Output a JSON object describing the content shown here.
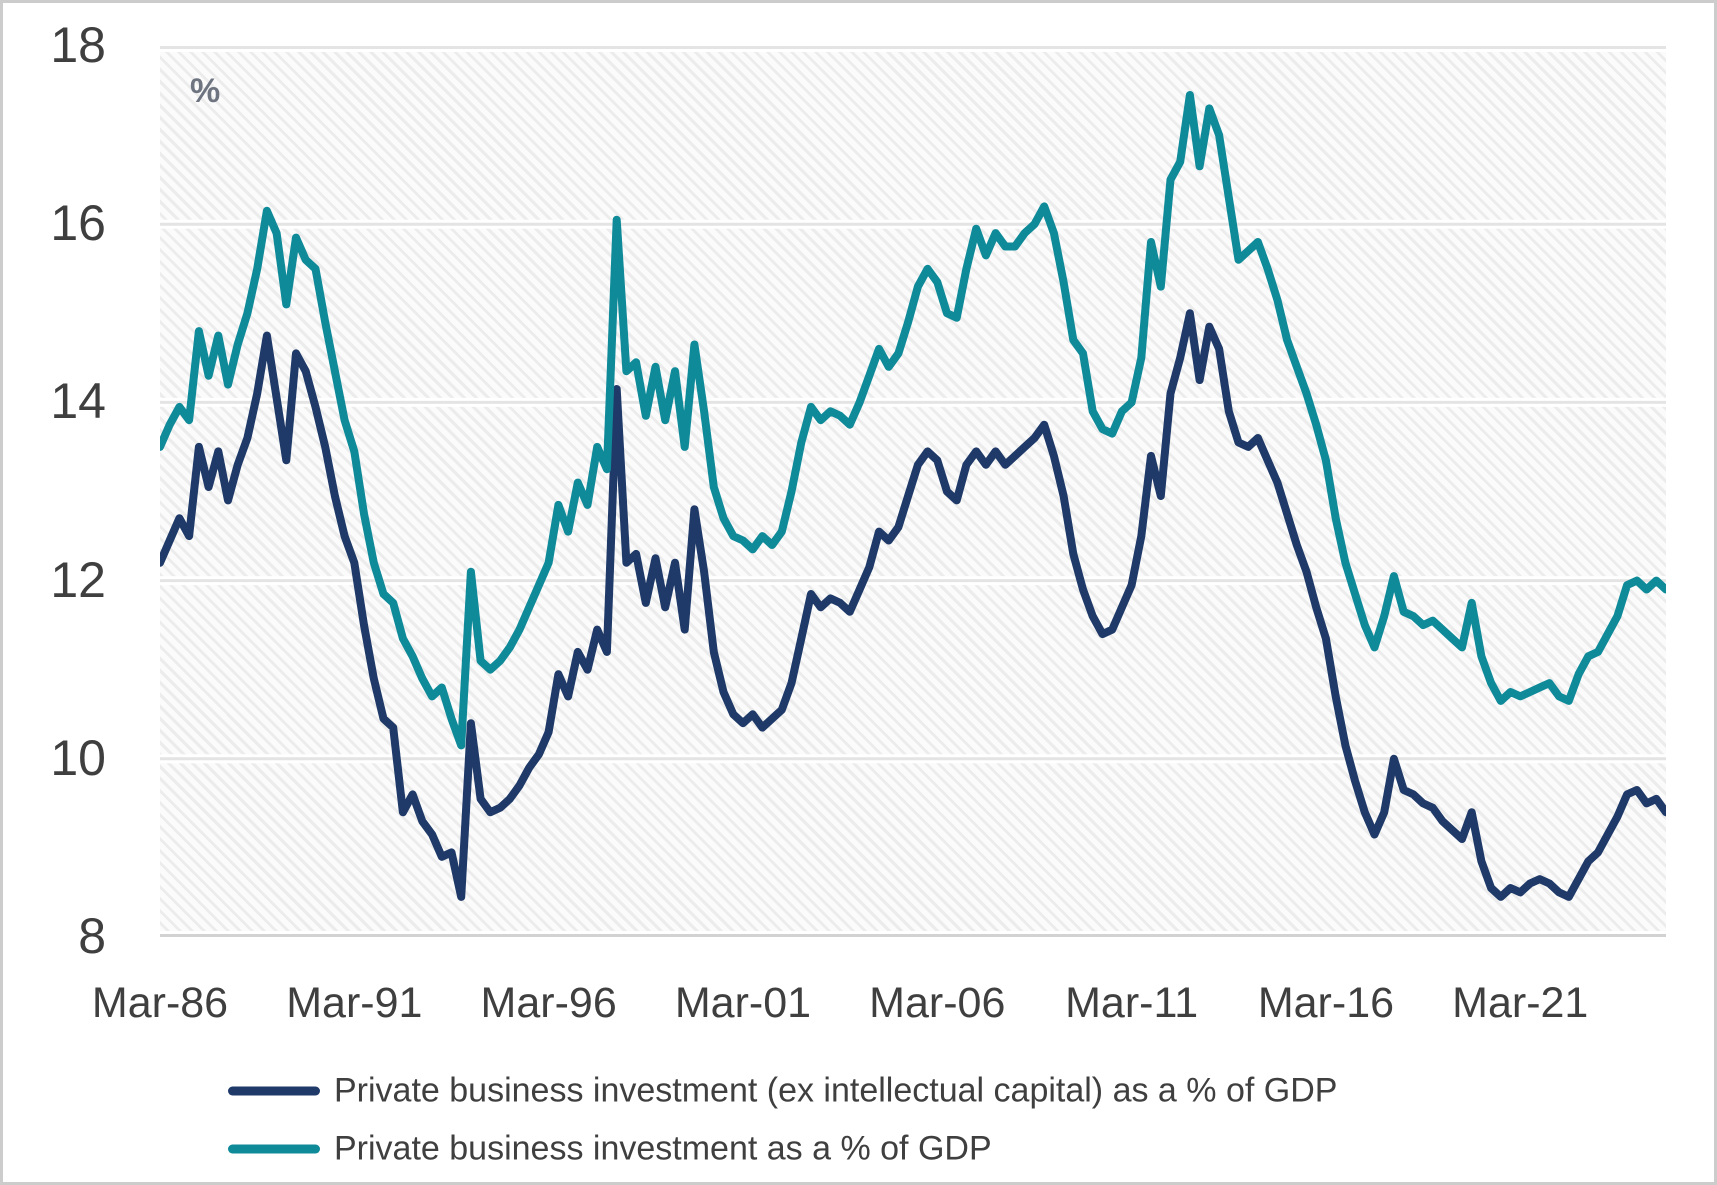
{
  "chart_data": {
    "type": "line",
    "title": "",
    "unit_label": "%",
    "x_axis": {
      "tick_labels": [
        "Mar-86",
        "Mar-91",
        "Mar-96",
        "Mar-01",
        "Mar-06",
        "Mar-11",
        "Mar-16",
        "Mar-21"
      ],
      "tick_point_indices": [
        0,
        20,
        40,
        60,
        80,
        100,
        120,
        140
      ],
      "start": "Mar-1986",
      "end": "Dec-2024",
      "frequency": "quarterly"
    },
    "y_axis": {
      "min": 8,
      "max": 18,
      "ticks": [
        18,
        16,
        14,
        12,
        10,
        8
      ]
    },
    "grid": "horizontal",
    "plot_background": "light-diagonal-hatch",
    "legend_position": "bottom",
    "series": [
      {
        "name": "Private business investment (ex intellectual capital) as a % of GDP",
        "color": "#1F3A68",
        "values": [
          12.2,
          12.45,
          12.7,
          12.5,
          13.5,
          13.05,
          13.45,
          12.9,
          13.3,
          13.6,
          14.1,
          14.75,
          14.05,
          13.35,
          14.55,
          14.35,
          13.95,
          13.5,
          12.95,
          12.5,
          12.2,
          11.5,
          10.9,
          10.45,
          10.35,
          9.4,
          9.6,
          9.3,
          9.15,
          8.9,
          8.95,
          8.45,
          10.4,
          9.55,
          9.4,
          9.45,
          9.55,
          9.7,
          9.9,
          10.05,
          10.3,
          10.95,
          10.7,
          11.2,
          11.0,
          11.45,
          11.2,
          14.15,
          12.2,
          12.3,
          11.75,
          12.25,
          11.7,
          12.2,
          11.45,
          12.8,
          12.1,
          11.2,
          10.75,
          10.5,
          10.4,
          10.5,
          10.35,
          10.45,
          10.55,
          10.85,
          11.35,
          11.85,
          11.7,
          11.8,
          11.75,
          11.65,
          11.9,
          12.15,
          12.55,
          12.45,
          12.6,
          12.95,
          13.3,
          13.45,
          13.35,
          13.0,
          12.9,
          13.3,
          13.45,
          13.3,
          13.45,
          13.3,
          13.4,
          13.5,
          13.6,
          13.75,
          13.4,
          12.95,
          12.3,
          11.9,
          11.6,
          11.4,
          11.45,
          11.7,
          11.95,
          12.5,
          13.4,
          12.95,
          14.1,
          14.5,
          15.0,
          14.25,
          14.85,
          14.6,
          13.9,
          13.55,
          13.5,
          13.6,
          13.35,
          13.1,
          12.75,
          12.4,
          12.1,
          11.7,
          11.35,
          10.7,
          10.15,
          9.75,
          9.4,
          9.15,
          9.4,
          10.0,
          9.65,
          9.6,
          9.5,
          9.45,
          9.3,
          9.2,
          9.1,
          9.4,
          8.85,
          8.55,
          8.45,
          8.55,
          8.5,
          8.6,
          8.65,
          8.6,
          8.5,
          8.45,
          8.65,
          8.85,
          8.95,
          9.15,
          9.35,
          9.6,
          9.65,
          9.5,
          9.55,
          9.4
        ]
      },
      {
        "name": "Private business investment as a % of GDP",
        "color": "#0F8A99",
        "values": [
          13.5,
          13.75,
          13.95,
          13.8,
          14.8,
          14.3,
          14.75,
          14.2,
          14.65,
          15.0,
          15.5,
          16.15,
          15.9,
          15.1,
          15.85,
          15.6,
          15.5,
          14.9,
          14.35,
          13.8,
          13.45,
          12.75,
          12.2,
          11.85,
          11.75,
          11.35,
          11.15,
          10.9,
          10.7,
          10.8,
          10.45,
          10.15,
          12.1,
          11.1,
          11.0,
          11.1,
          11.25,
          11.45,
          11.7,
          11.95,
          12.2,
          12.85,
          12.55,
          13.1,
          12.85,
          13.5,
          13.25,
          16.05,
          14.35,
          14.45,
          13.85,
          14.4,
          13.8,
          14.35,
          13.5,
          14.65,
          13.9,
          13.05,
          12.7,
          12.5,
          12.45,
          12.35,
          12.5,
          12.4,
          12.55,
          13.0,
          13.55,
          13.95,
          13.8,
          13.9,
          13.85,
          13.75,
          14.0,
          14.3,
          14.6,
          14.4,
          14.55,
          14.9,
          15.3,
          15.5,
          15.35,
          15.0,
          14.95,
          15.5,
          15.95,
          15.65,
          15.9,
          15.75,
          15.75,
          15.9,
          16.0,
          16.2,
          15.9,
          15.35,
          14.7,
          14.55,
          13.9,
          13.7,
          13.65,
          13.9,
          14.0,
          14.5,
          15.8,
          15.3,
          16.5,
          16.7,
          17.45,
          16.65,
          17.3,
          17.0,
          16.3,
          15.6,
          15.7,
          15.8,
          15.5,
          15.15,
          14.7,
          14.4,
          14.1,
          13.75,
          13.35,
          12.7,
          12.2,
          11.85,
          11.5,
          11.25,
          11.6,
          12.05,
          11.65,
          11.6,
          11.5,
          11.55,
          11.45,
          11.35,
          11.25,
          11.75,
          11.15,
          10.85,
          10.65,
          10.75,
          10.7,
          10.75,
          10.8,
          10.85,
          10.7,
          10.65,
          10.95,
          11.15,
          11.2,
          11.4,
          11.6,
          11.95,
          12.0,
          11.9,
          12.0,
          11.9
        ]
      }
    ],
    "colors": {
      "axis_text": "#3F3F3F",
      "unit_label": "#6E7480",
      "gridline": "#E4E4E4",
      "axis_line": "#D2D2D2",
      "hatch_stripe": "#ECECEC",
      "page_border": "#CCCCCC"
    }
  }
}
